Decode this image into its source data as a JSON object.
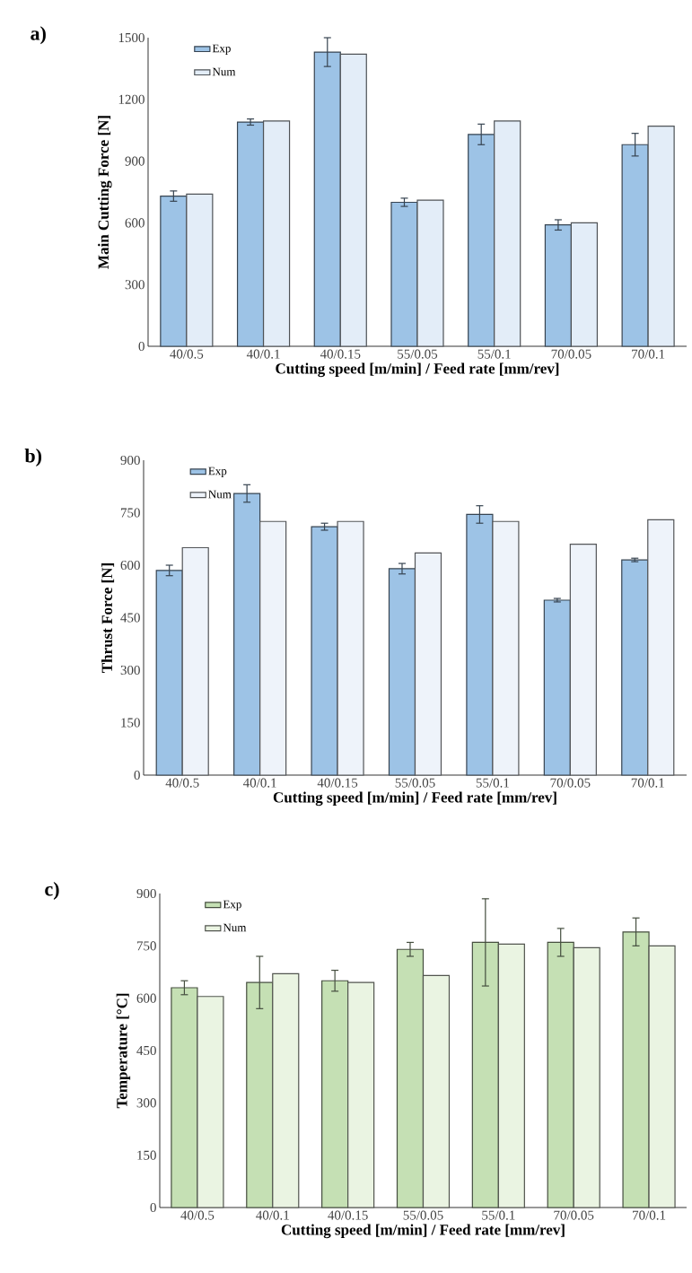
{
  "chart_data": [
    {
      "type": "bar",
      "title": "a)",
      "xlabel": "Cutting speed [m/min] / Feed rate [mm/rev]",
      "ylabel": "Main Cutting Force [N]",
      "categories": [
        "40/0.5",
        "40/0.1",
        "40/0.15",
        "55/0.05",
        "55/0.1",
        "70/0.05",
        "70/0.1"
      ],
      "series": [
        {
          "name": "Exp",
          "color": "#9dc3e6",
          "values": [
            730,
            1090,
            1430,
            700,
            1030,
            590,
            980
          ],
          "errors": [
            25,
            15,
            70,
            20,
            50,
            25,
            55
          ]
        },
        {
          "name": "Num",
          "color": "#e3edf8",
          "values": [
            740,
            1095,
            1420,
            710,
            1095,
            600,
            1070
          ]
        }
      ],
      "ylim": [
        0,
        1500
      ],
      "yticks": [
        0,
        300,
        600,
        900,
        1200,
        1500
      ],
      "legend": "top left"
    },
    {
      "type": "bar",
      "title": "b)",
      "xlabel": "Cutting speed [m/min] / Feed rate [mm/rev]",
      "ylabel": "Thrust Force [N]",
      "categories": [
        "40/0.5",
        "40/0.1",
        "40/0.15",
        "55/0.05",
        "55/0.1",
        "70/0.05",
        "70/0.1"
      ],
      "series": [
        {
          "name": "Exp",
          "color": "#9dc3e6",
          "values": [
            585,
            805,
            710,
            590,
            745,
            500,
            615
          ],
          "errors": [
            15,
            25,
            10,
            15,
            25,
            5,
            5
          ]
        },
        {
          "name": "Num",
          "color": "#eef3fa",
          "values": [
            650,
            725,
            725,
            635,
            725,
            660,
            730
          ]
        }
      ],
      "ylim": [
        0,
        900
      ],
      "yticks": [
        0,
        150,
        300,
        450,
        600,
        750,
        900
      ],
      "legend": "top left"
    },
    {
      "type": "bar",
      "title": "c)",
      "xlabel": "Cutting speed [m/min] / Feed rate [mm/rev]",
      "ylabel": "Temperature [°C]",
      "categories": [
        "40/0.5",
        "40/0.1",
        "40/0.15",
        "55/0.05",
        "55/0.1",
        "70/0.05",
        "70/0.1"
      ],
      "series": [
        {
          "name": "Exp",
          "color": "#c5e0b4",
          "values": [
            630,
            645,
            650,
            740,
            760,
            760,
            790
          ],
          "errors": [
            20,
            75,
            30,
            20,
            125,
            40,
            40
          ]
        },
        {
          "name": "Num",
          "color": "#eaf4e2",
          "values": [
            605,
            670,
            645,
            665,
            755,
            745,
            750
          ]
        }
      ],
      "ylim": [
        0,
        900
      ],
      "yticks": [
        0,
        150,
        300,
        450,
        600,
        750,
        900
      ],
      "legend": "top left"
    }
  ]
}
